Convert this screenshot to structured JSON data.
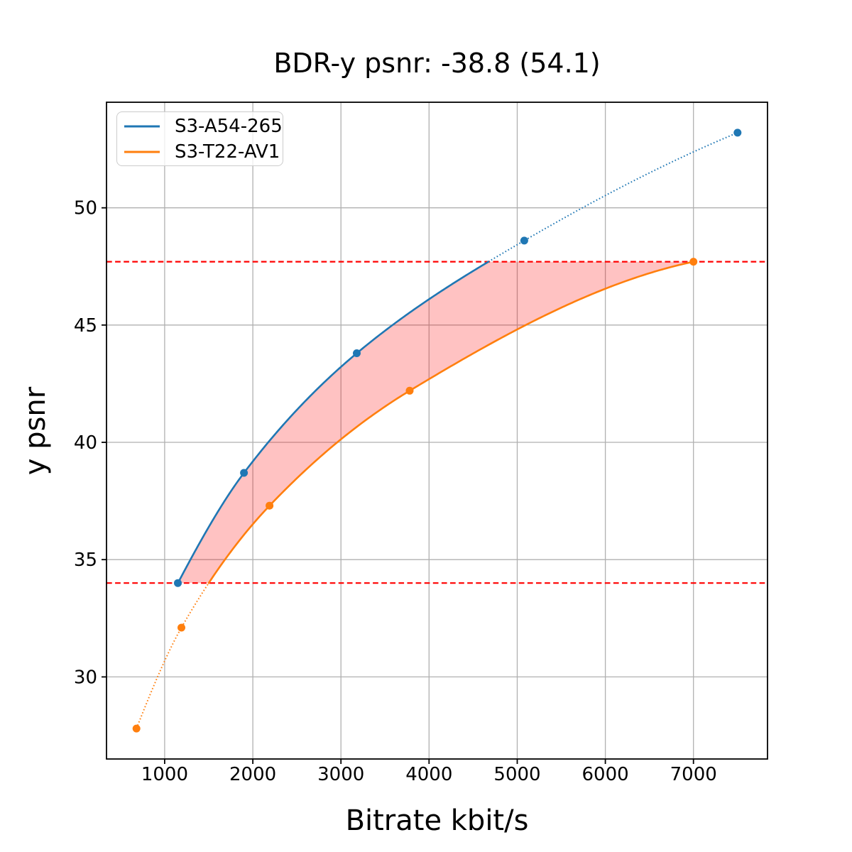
{
  "chart_data": {
    "type": "line",
    "title": "BDR-y psnr: -38.8 (54.1)",
    "xlabel": "Bitrate kbit/s",
    "ylabel": "y psnr",
    "xlim": [
      340,
      7840
    ],
    "ylim": [
      26.5,
      54.5
    ],
    "x_ticks": [
      1000,
      2000,
      3000,
      4000,
      5000,
      6000,
      7000
    ],
    "y_ticks": [
      30,
      35,
      40,
      45,
      50
    ],
    "grid": true,
    "legend_position": "upper-left",
    "series": [
      {
        "name": "S3-A54-265",
        "color": "#1f77b4",
        "x": [
          1150,
          1900,
          3180,
          5080,
          7500
        ],
        "y": [
          34.0,
          38.7,
          43.8,
          48.6,
          53.2
        ]
      },
      {
        "name": "S3-T22-AV1",
        "color": "#ff7f0e",
        "x": [
          680,
          1190,
          2190,
          3780,
          7000
        ],
        "y": [
          27.8,
          32.1,
          37.3,
          42.2,
          47.7
        ]
      }
    ],
    "hlines": {
      "values": [
        34.0,
        47.7
      ],
      "color": "#ff0000",
      "style": "dashed"
    },
    "overlap_interval_psnr": [
      34.0,
      47.7
    ],
    "shaded_region": {
      "between": "series curves",
      "y_range": [
        34.0,
        47.7
      ],
      "color": "#ff0000",
      "opacity": 0.24
    },
    "colors": {
      "grid": "#b0b0b0",
      "spine": "#000000"
    }
  }
}
